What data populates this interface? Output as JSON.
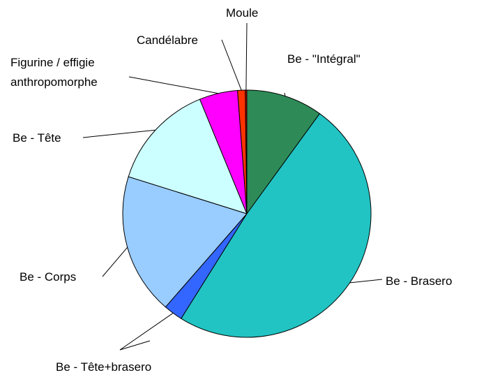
{
  "chart_data": {
    "type": "pie",
    "title": "",
    "start_angle_deg": 90,
    "direction": "clockwise",
    "slices": [
      {
        "label": "Be - \"Intégral\"",
        "value": 10.0,
        "color": "#2e8b57"
      },
      {
        "label": "Be - Brasero",
        "value": 49.0,
        "color": "#22c3c3"
      },
      {
        "label": "Be - Tête+brasero",
        "value": 2.5,
        "color": "#3366ff"
      },
      {
        "label": "Be - Corps",
        "value": 18.5,
        "color": "#99ccff"
      },
      {
        "label": "Be - Tête",
        "value": 14.0,
        "color": "#ccffff"
      },
      {
        "label": "Figurine / effigie anthropomorphe",
        "label_lines": [
          "Figurine / effigie",
          "anthropomorphe"
        ],
        "value": 5.0,
        "color": "#ff00ff"
      },
      {
        "label": "Candélabre",
        "value": 1.0,
        "color": "#ff3300"
      },
      {
        "label": "Moule",
        "value": 0.2,
        "color": "#cc0000"
      }
    ]
  }
}
